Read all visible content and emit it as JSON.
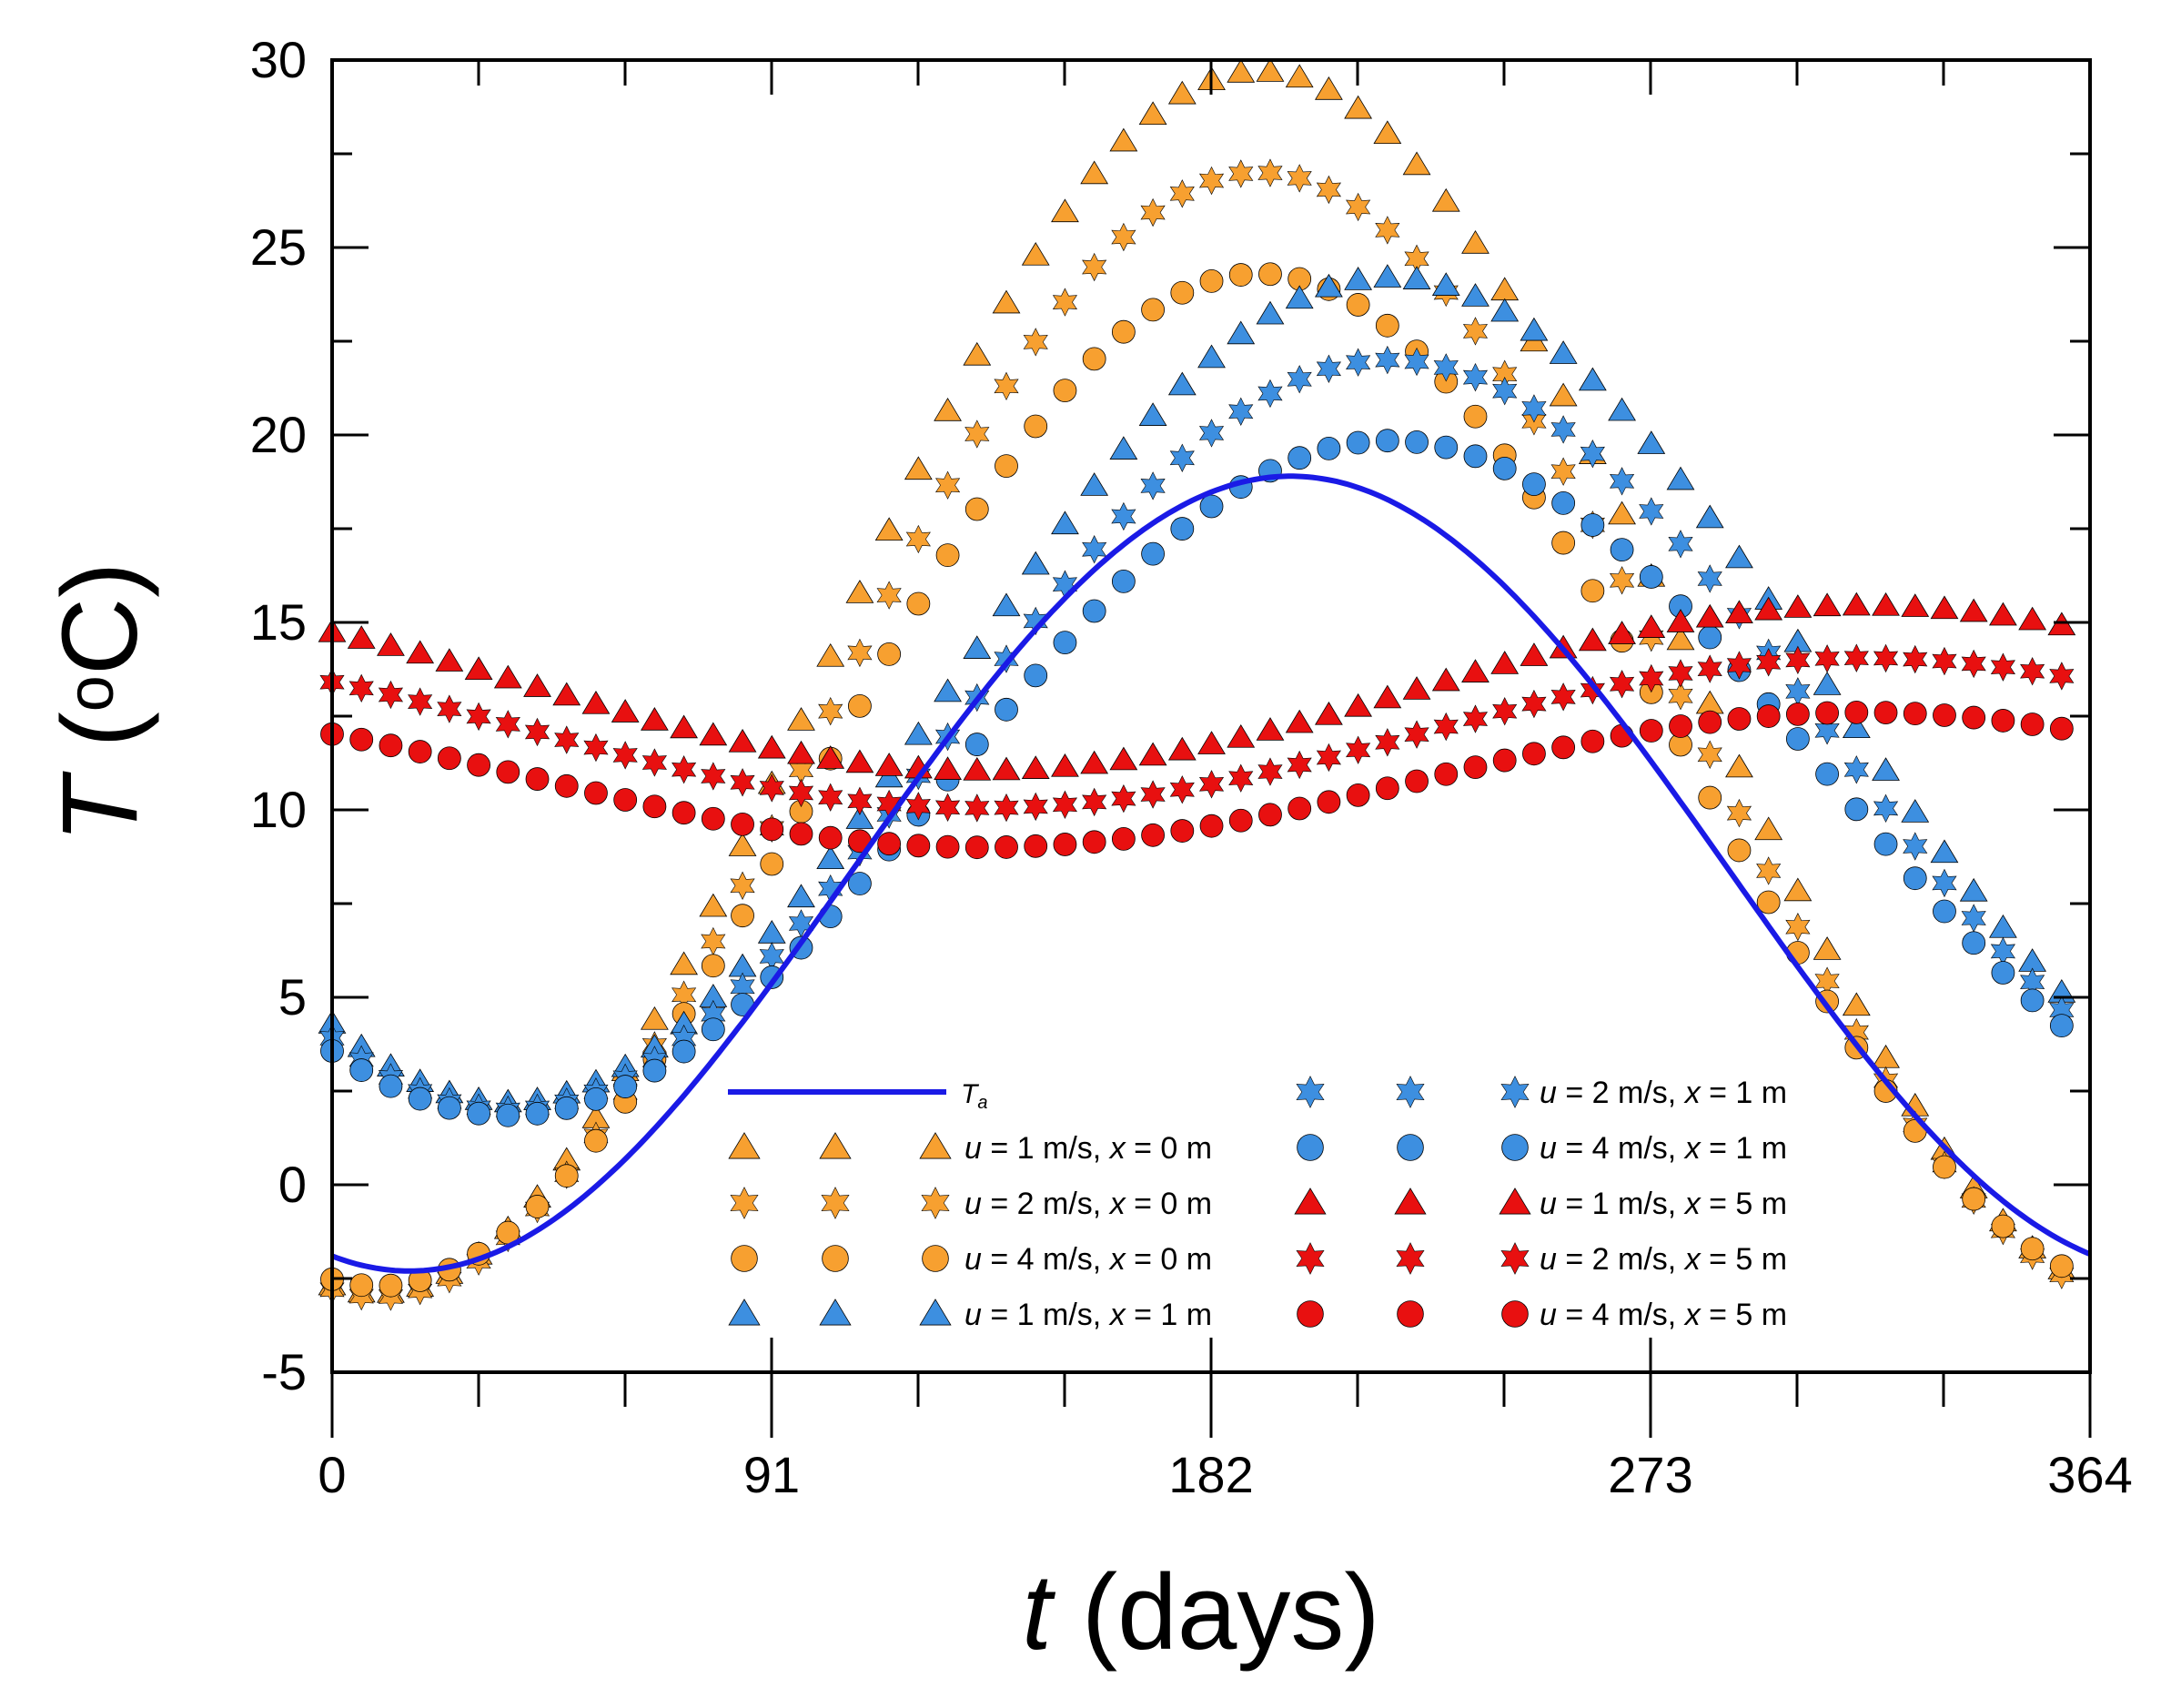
{
  "chart_data": {
    "type": "scatter",
    "title": "",
    "xlabel": {
      "symbol": "t",
      "unit": "(days)"
    },
    "ylabel": {
      "symbol": "T",
      "unit": "(oC)"
    },
    "xlim": [
      0,
      364
    ],
    "ylim": [
      -5,
      30
    ],
    "x_ticks": [
      0,
      91,
      182,
      273,
      364
    ],
    "x_minor_step": 30.333,
    "y_ticks": [
      -5,
      0,
      5,
      10,
      15,
      20,
      25,
      30
    ],
    "y_tick_labels": [
      "-5",
      "0",
      "5",
      "10",
      "15",
      "20",
      "25",
      "30"
    ],
    "x_tick_labels": [
      "0",
      "91",
      "182",
      "273",
      "364"
    ],
    "sample_step_days": 6.07,
    "legend_placement": "bottom-center",
    "series": [
      {
        "id": "ta",
        "name": "T_a",
        "name_main": "T",
        "name_sub": "a",
        "kind": "line",
        "color": "#1a1ae6",
        "model": {
          "mean": 8.3,
          "amplitude": 10.6,
          "phase_day": 198.5
        }
      },
      {
        "id": "u1x0",
        "name": "u = 1 m/s, x = 0 m",
        "u": "1",
        "x": "0",
        "marker": "triangle",
        "color": "#f7a030",
        "model": {
          "mean": 13.4,
          "amplitude": 16.3,
          "phase_day": 192
        }
      },
      {
        "id": "u2x0",
        "name": "u = 2 m/s, x = 0 m",
        "u": "2",
        "x": "0",
        "marker": "star",
        "color": "#f7a030",
        "model": {
          "mean": 12.0,
          "amplitude": 15.0,
          "phase_day": 192
        }
      },
      {
        "id": "u4x0",
        "name": "u = 4 m/s, x = 0 m",
        "u": "4",
        "x": "0",
        "marker": "circle",
        "color": "#f7a030",
        "model": {
          "mean": 10.8,
          "amplitude": 13.5,
          "phase_day": 192
        }
      },
      {
        "id": "u1x1",
        "name": "u = 1 m/s, x = 1 m",
        "u": "1",
        "x": "1",
        "marker": "triangle",
        "color": "#3d8fe0",
        "model": {
          "mean": 13.2,
          "amplitude": 11.0,
          "phase_day": 219
        }
      },
      {
        "id": "u2x1",
        "name": "u = 2 m/s, x = 1 m",
        "u": "2",
        "x": "1",
        "marker": "star",
        "color": "#3d8fe0",
        "model": {
          "mean": 12.0,
          "amplitude": 10.0,
          "phase_day": 219
        }
      },
      {
        "id": "u4x1",
        "name": "u = 4 m/s, x = 1 m",
        "u": "4",
        "x": "1",
        "marker": "circle",
        "color": "#3d8fe0",
        "model": {
          "mean": 10.85,
          "amplitude": 9.0,
          "phase_day": 219
        }
      },
      {
        "id": "u1x5",
        "name": "u = 1 m/s, x = 5 m",
        "u": "1",
        "x": "5",
        "marker": "triangle",
        "color": "#e81010",
        "model": {
          "mean": 13.25,
          "amplitude": 2.2,
          "phase_day": 317
        }
      },
      {
        "id": "u2x5",
        "name": "u = 2 m/s, x = 5 m",
        "u": "2",
        "x": "5",
        "marker": "star",
        "color": "#e81010",
        "model": {
          "mean": 12.05,
          "amplitude": 2.0,
          "phase_day": 317
        }
      },
      {
        "id": "u4x5",
        "name": "u = 4 m/s, x = 5 m",
        "u": "4",
        "x": "5",
        "marker": "circle",
        "color": "#e81010",
        "model": {
          "mean": 10.8,
          "amplitude": 1.8,
          "phase_day": 317
        }
      }
    ]
  },
  "legend": {
    "unit_speed": "m/s",
    "unit_distance": "m",
    "u_symbol": "u",
    "x_symbol": "x"
  }
}
